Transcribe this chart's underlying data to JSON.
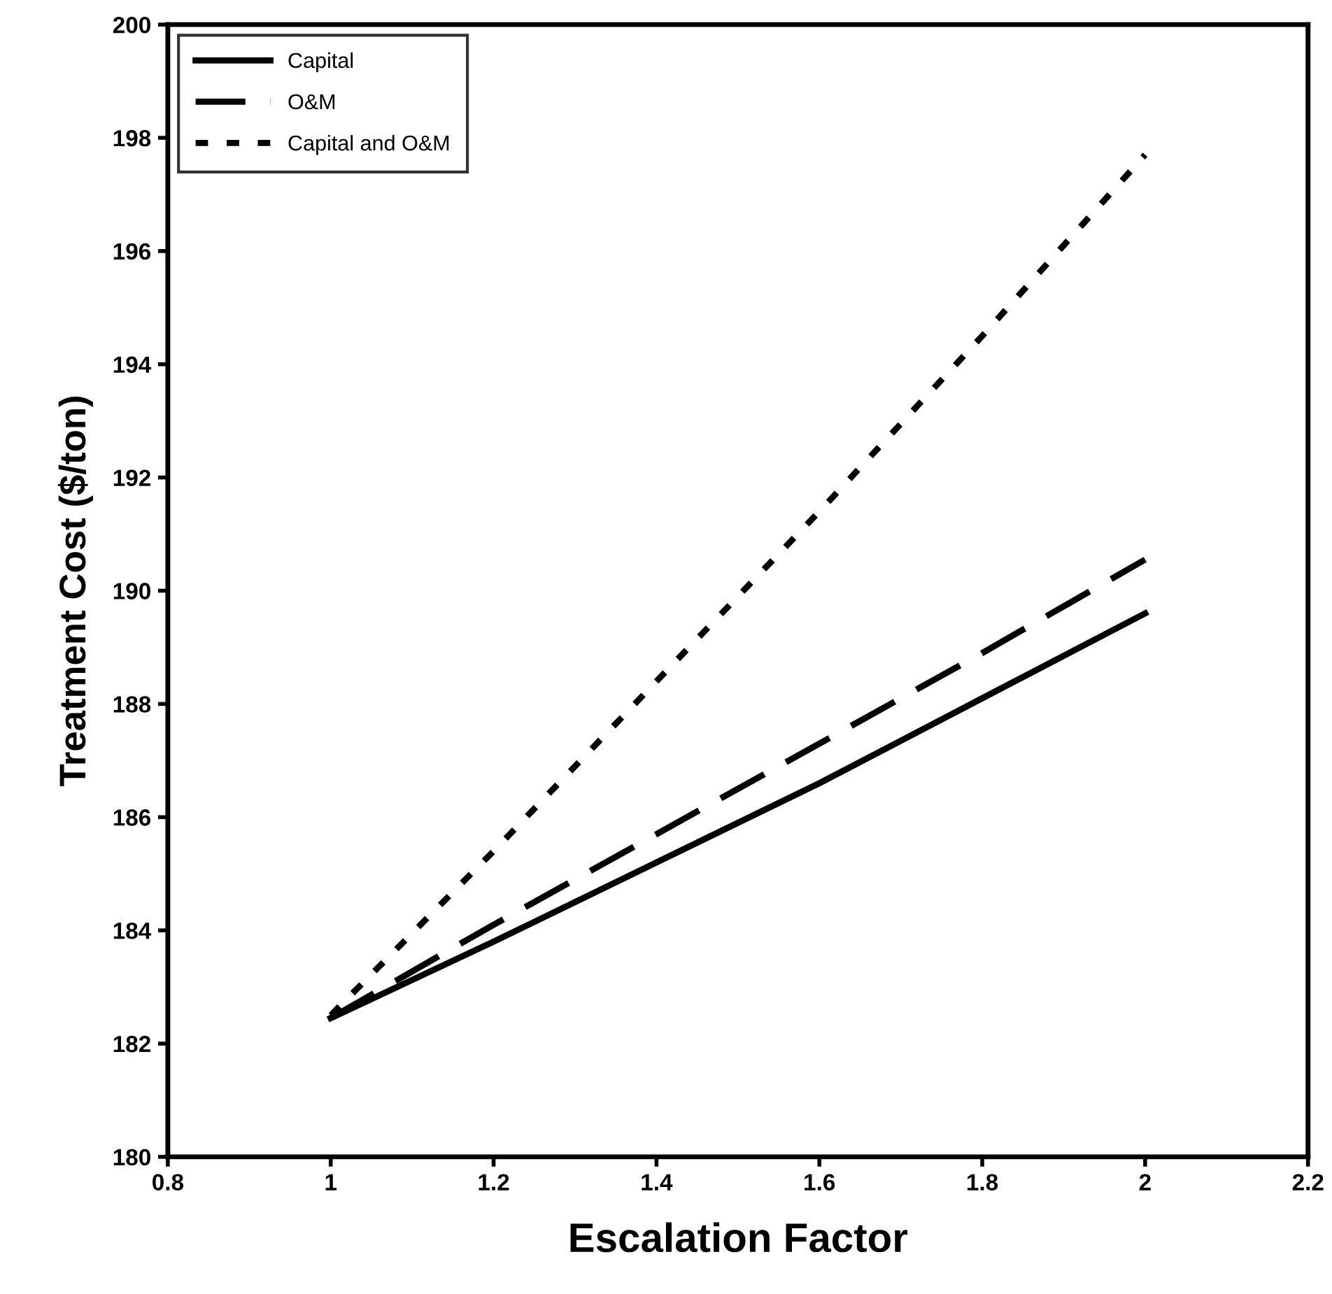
{
  "chart_data": {
    "type": "line",
    "xlabel": "Escalation Factor",
    "ylabel": "Treatment Cost ($/ton)",
    "x": [
      1,
      1.2,
      1.4,
      1.6,
      1.8,
      2
    ],
    "series": [
      {
        "name": "Capital",
        "color": "#000000",
        "line_style": "solid",
        "values": [
          182.45,
          183.8,
          185.2,
          186.6,
          188.1,
          189.6
        ]
      },
      {
        "name": "O&M",
        "color": "#000000",
        "line_style": "dashed",
        "values": [
          182.45,
          184.1,
          185.7,
          187.3,
          188.9,
          190.55
        ]
      },
      {
        "name": "Capital and O&M",
        "color": "#000000",
        "line_style": "dotted",
        "values": [
          182.5,
          185.4,
          188.4,
          191.4,
          194.5,
          197.7
        ]
      }
    ],
    "xlim": [
      0.8,
      2.2
    ],
    "xticks": [
      0.8,
      1,
      1.2,
      1.4,
      1.6,
      1.8,
      2,
      2.2
    ],
    "ylim": [
      180,
      200
    ],
    "yticks": [
      180,
      182,
      184,
      186,
      188,
      190,
      192,
      194,
      196,
      198,
      200
    ],
    "grid": false,
    "legend": "top left",
    "marker": "none"
  }
}
